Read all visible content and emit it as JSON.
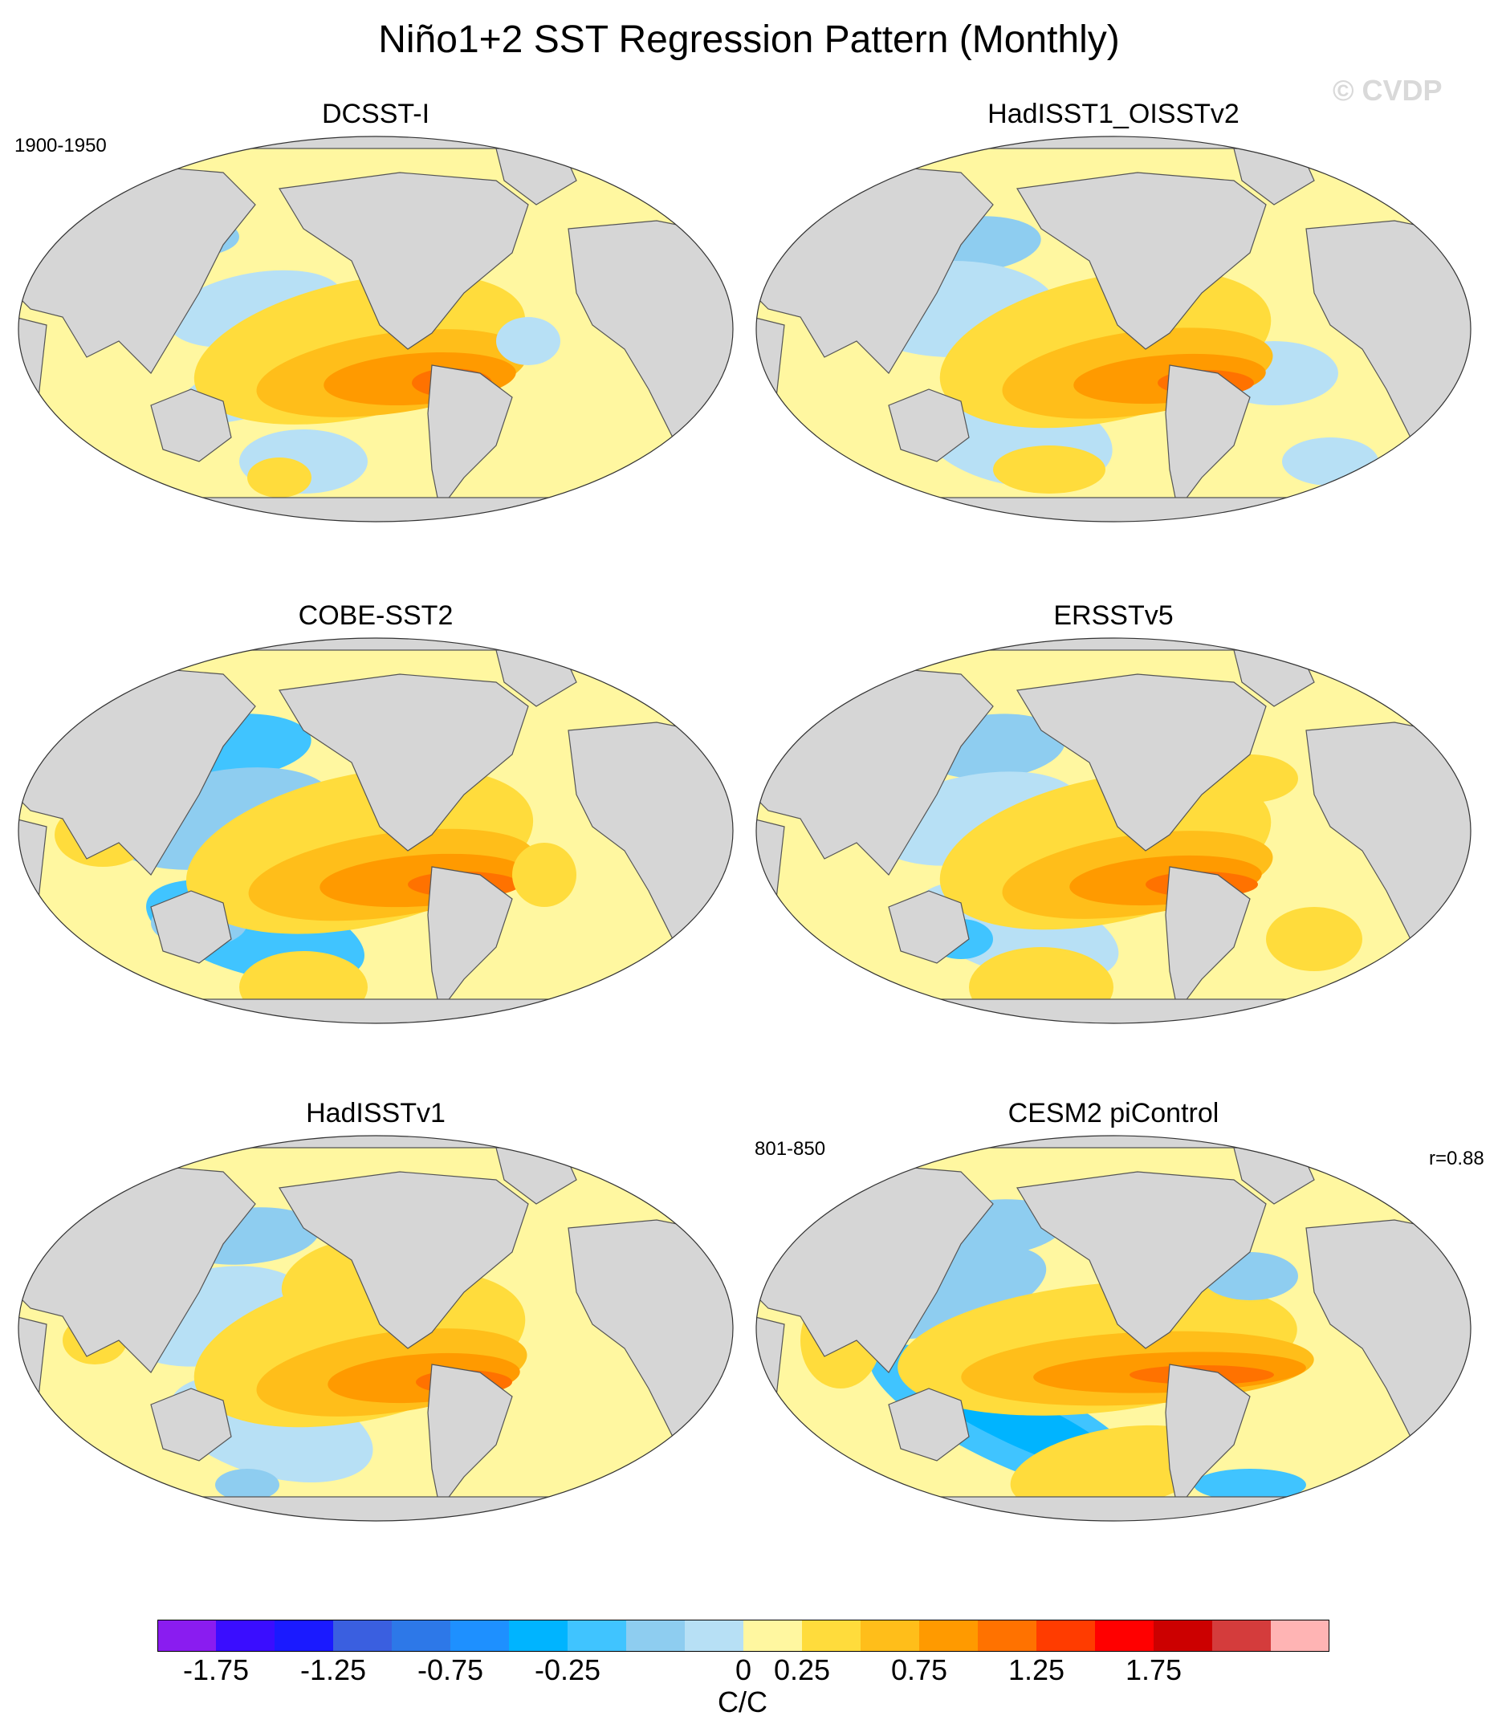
{
  "title": "Niño1+2 SST Regression Pattern (Monthly)",
  "watermark": "© CVDP",
  "observed_period": "1900-1950",
  "model_period": "801-850",
  "pattern_correlation": "r=0.88",
  "panels": [
    {
      "title": "DCSST-I"
    },
    {
      "title": "HadISST1_OISSTv2"
    },
    {
      "title": "COBE-SST2"
    },
    {
      "title": "ERSSTv5"
    },
    {
      "title": "HadISSTv1"
    },
    {
      "title": "CESM2 piControl"
    }
  ],
  "colorbar": {
    "unit": "C/C",
    "colors": [
      "#8a1cf0",
      "#3a0dff",
      "#1a1aff",
      "#3a5fe0",
      "#2d78e8",
      "#1e90ff",
      "#00b4ff",
      "#40c4ff",
      "#8ecdf0",
      "#b7e0f5",
      "#fff7a0",
      "#ffdc3c",
      "#ffbe1a",
      "#ff9a00",
      "#ff7200",
      "#ff3c00",
      "#ff0000",
      "#cc0000",
      "#d43c3c",
      "#ffb4b4"
    ],
    "tick_labels": [
      "-1.75",
      "-1.25",
      "-0.75",
      "-0.25",
      "0",
      "0.25",
      "0.75",
      "1.25",
      "1.75"
    ]
  },
  "colors": {
    "land": "#d6d6d6",
    "coast": "#555555",
    "ocean_base": "#fff7a0"
  }
}
